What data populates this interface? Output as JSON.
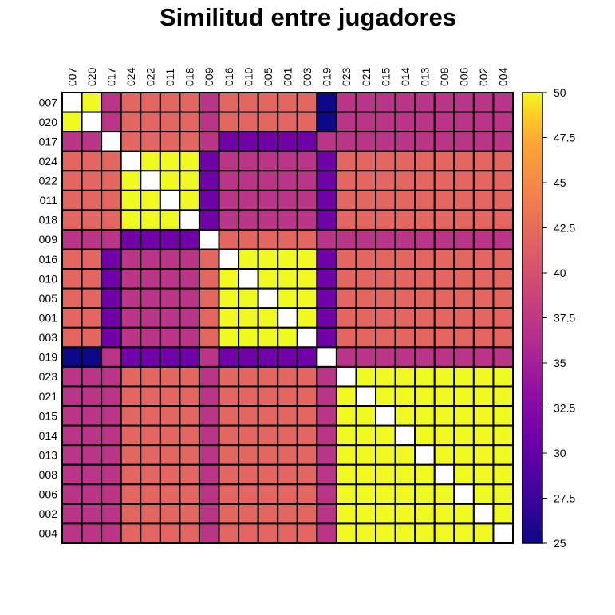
{
  "chart_data": {
    "type": "heatmap",
    "title": "Similitud entre jugadores",
    "row_labels": [
      "007",
      "020",
      "017",
      "024",
      "022",
      "011",
      "018",
      "009",
      "016",
      "010",
      "005",
      "001",
      "003",
      "019",
      "023",
      "021",
      "015",
      "014",
      "013",
      "008",
      "006",
      "002",
      "004"
    ],
    "col_labels": [
      "007",
      "020",
      "017",
      "024",
      "022",
      "011",
      "018",
      "009",
      "016",
      "010",
      "005",
      "001",
      "003",
      "019",
      "023",
      "021",
      "015",
      "014",
      "013",
      "008",
      "006",
      "002",
      "004"
    ],
    "value_range": [
      25,
      50
    ],
    "colorbar_ticks": [
      "25",
      "27.5",
      "30",
      "32.5",
      "35",
      "37.5",
      "40",
      "42.5",
      "45",
      "47.5",
      "50"
    ],
    "colorscale": "plasma",
    "diagonal": "blank",
    "grid": true,
    "legend": "right",
    "matrix": [
      [
        null,
        50,
        37,
        42,
        42,
        42,
        42,
        37,
        42,
        42,
        42,
        42,
        42,
        25,
        37,
        37,
        37,
        37,
        37,
        37,
        37,
        37,
        37
      ],
      [
        50,
        null,
        37,
        42,
        42,
        42,
        42,
        37,
        42,
        42,
        42,
        42,
        42,
        25,
        37,
        37,
        37,
        37,
        37,
        37,
        37,
        37,
        37
      ],
      [
        37,
        37,
        null,
        42,
        42,
        42,
        42,
        37,
        31,
        31,
        31,
        31,
        31,
        37,
        37,
        37,
        37,
        37,
        37,
        37,
        37,
        37,
        37
      ],
      [
        42,
        42,
        42,
        null,
        50,
        50,
        50,
        31,
        37,
        37,
        37,
        37,
        37,
        31,
        42,
        42,
        42,
        42,
        42,
        42,
        42,
        42,
        42
      ],
      [
        42,
        42,
        42,
        50,
        null,
        50,
        50,
        31,
        37,
        37,
        37,
        37,
        37,
        31,
        42,
        42,
        42,
        42,
        42,
        42,
        42,
        42,
        42
      ],
      [
        42,
        42,
        42,
        50,
        50,
        null,
        50,
        31,
        37,
        37,
        37,
        37,
        37,
        31,
        42,
        42,
        42,
        42,
        42,
        42,
        42,
        42,
        42
      ],
      [
        42,
        42,
        42,
        50,
        50,
        50,
        null,
        31,
        37,
        37,
        37,
        37,
        37,
        31,
        42,
        42,
        42,
        42,
        42,
        42,
        42,
        42,
        42
      ],
      [
        37,
        37,
        37,
        31,
        31,
        31,
        31,
        null,
        42,
        42,
        42,
        42,
        42,
        37,
        37,
        37,
        37,
        37,
        37,
        37,
        37,
        37,
        37
      ],
      [
        42,
        42,
        31,
        37,
        37,
        37,
        37,
        42,
        null,
        50,
        50,
        50,
        50,
        31,
        42,
        42,
        42,
        42,
        42,
        42,
        42,
        42,
        42
      ],
      [
        42,
        42,
        31,
        37,
        37,
        37,
        37,
        42,
        50,
        null,
        50,
        50,
        50,
        31,
        42,
        42,
        42,
        42,
        42,
        42,
        42,
        42,
        42
      ],
      [
        42,
        42,
        31,
        37,
        37,
        37,
        37,
        42,
        50,
        50,
        null,
        50,
        50,
        31,
        42,
        42,
        42,
        42,
        42,
        42,
        42,
        42,
        42
      ],
      [
        42,
        42,
        31,
        37,
        37,
        37,
        37,
        42,
        50,
        50,
        50,
        null,
        50,
        31,
        42,
        42,
        42,
        42,
        42,
        42,
        42,
        42,
        42
      ],
      [
        42,
        42,
        31,
        37,
        37,
        37,
        37,
        42,
        50,
        50,
        50,
        50,
        null,
        31,
        42,
        42,
        42,
        42,
        42,
        42,
        42,
        42,
        42
      ],
      [
        25,
        25,
        37,
        31,
        31,
        31,
        31,
        37,
        31,
        31,
        31,
        31,
        31,
        null,
        37,
        37,
        37,
        37,
        37,
        37,
        37,
        37,
        37
      ],
      [
        37,
        37,
        37,
        42,
        42,
        42,
        42,
        37,
        42,
        42,
        42,
        42,
        42,
        37,
        null,
        50,
        50,
        50,
        50,
        50,
        50,
        50,
        50
      ],
      [
        37,
        37,
        37,
        42,
        42,
        42,
        42,
        37,
        42,
        42,
        42,
        42,
        42,
        37,
        50,
        null,
        50,
        50,
        50,
        50,
        50,
        50,
        50
      ],
      [
        37,
        37,
        37,
        42,
        42,
        42,
        42,
        37,
        42,
        42,
        42,
        42,
        42,
        37,
        50,
        50,
        null,
        50,
        50,
        50,
        50,
        50,
        50
      ],
      [
        37,
        37,
        37,
        42,
        42,
        42,
        42,
        37,
        42,
        42,
        42,
        42,
        42,
        37,
        50,
        50,
        50,
        null,
        50,
        50,
        50,
        50,
        50
      ],
      [
        37,
        37,
        37,
        42,
        42,
        42,
        42,
        37,
        42,
        42,
        42,
        42,
        42,
        37,
        50,
        50,
        50,
        50,
        null,
        50,
        50,
        50,
        50
      ],
      [
        37,
        37,
        37,
        42,
        42,
        42,
        42,
        37,
        42,
        42,
        42,
        42,
        42,
        37,
        50,
        50,
        50,
        50,
        50,
        null,
        50,
        50,
        50
      ],
      [
        37,
        37,
        37,
        42,
        42,
        42,
        42,
        37,
        42,
        42,
        42,
        42,
        42,
        37,
        50,
        50,
        50,
        50,
        50,
        50,
        null,
        50,
        50
      ],
      [
        37,
        37,
        37,
        42,
        42,
        42,
        42,
        37,
        42,
        42,
        42,
        42,
        42,
        37,
        50,
        50,
        50,
        50,
        50,
        50,
        50,
        null,
        50
      ],
      [
        37,
        37,
        37,
        42,
        42,
        42,
        42,
        37,
        42,
        42,
        42,
        42,
        42,
        37,
        50,
        50,
        50,
        50,
        50,
        50,
        50,
        50,
        null
      ]
    ]
  }
}
